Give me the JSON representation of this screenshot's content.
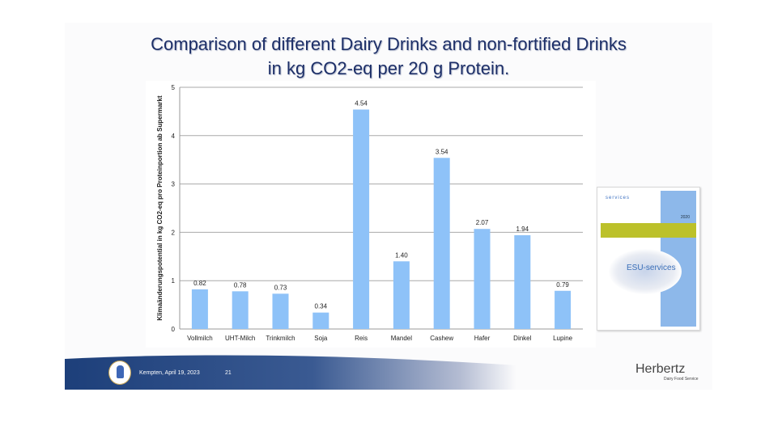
{
  "slide": {
    "title_line1": "Comparison of different Dairy Drinks and non-fortified Drinks",
    "title_line2": "in kg CO2-eq per 20 g Protein.",
    "footer_place_date": "Kempten, April 19, 2023",
    "page_number": "21",
    "brand": "Herbertz",
    "brand_sub": "Dairy Food Service",
    "cover": {
      "brand": "services",
      "year": "2020",
      "cloud_text": "ESU-services"
    }
  },
  "chart_data": {
    "type": "bar",
    "title": "",
    "xlabel": "",
    "ylabel": "Klimaänderungspotential in kg CO2-eq pro Proteinportion ab Supermarkt",
    "categories": [
      "Vollmilch",
      "UHT-Milch",
      "Trinkmilch",
      "Soja",
      "Reis",
      "Mandel",
      "Cashew",
      "Hafer",
      "Dinkel",
      "Lupine"
    ],
    "values": [
      0.82,
      0.78,
      0.73,
      0.34,
      4.54,
      1.4,
      3.54,
      2.07,
      1.94,
      0.79
    ],
    "data_labels": [
      "0.82",
      "0.78",
      "0.73",
      "0.34",
      "4.54",
      "1.40",
      "3.54",
      "2.07",
      "1.94",
      "0.79"
    ],
    "ylim": [
      0,
      5
    ],
    "yticks": [
      0,
      1,
      2,
      3,
      4,
      5
    ],
    "grid": true,
    "bar_color": "#8ec2f8"
  }
}
